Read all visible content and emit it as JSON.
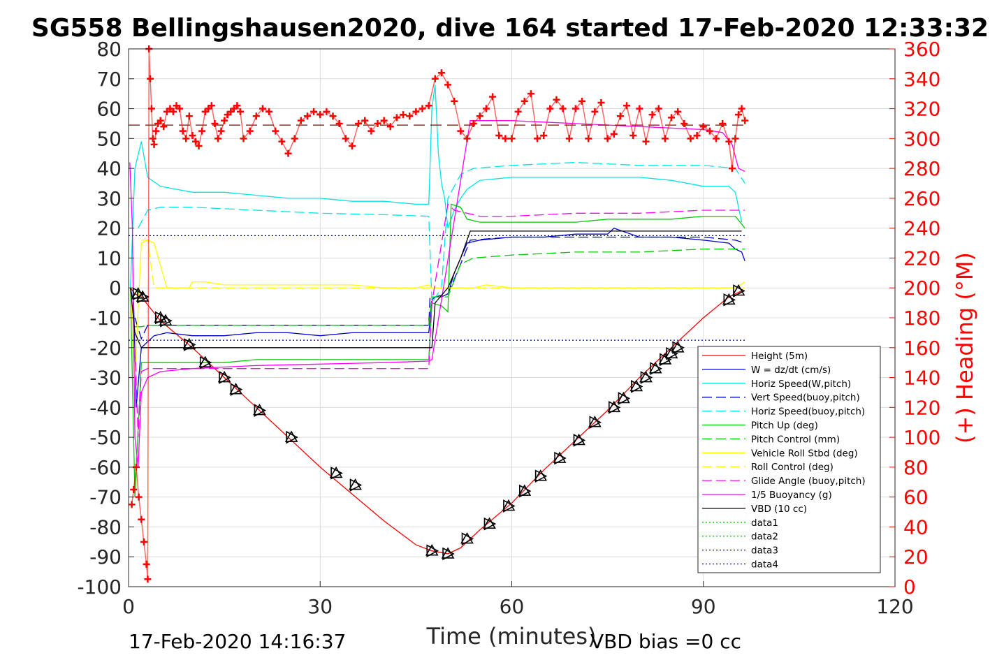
{
  "chart_data": {
    "type": "line",
    "title": "SG558 Bellingshausen2020, dive 164 started 17-Feb-2020 12:33:32",
    "xlabel": "Time (minutes)",
    "ylabel_left": "",
    "ylabel_right": "(+) Heading (°M)",
    "xlim": [
      0,
      120
    ],
    "ylim_left": [
      -100,
      80
    ],
    "ylim_right": [
      0,
      360
    ],
    "x_ticks": [
      "0",
      "30",
      "60",
      "90",
      "120"
    ],
    "y_ticks_left": [
      "80",
      "70",
      "60",
      "50",
      "40",
      "30",
      "20",
      "10",
      "0",
      "-10",
      "-20",
      "-30",
      "-40",
      "-50",
      "-60",
      "-70",
      "-80",
      "-90",
      "-100"
    ],
    "y_ticks_right": [
      "360",
      "340",
      "320",
      "300",
      "280",
      "260",
      "240",
      "220",
      "200",
      "180",
      "160",
      "140",
      "120",
      "100",
      "80",
      "60",
      "40",
      "20",
      "0"
    ],
    "grid": true,
    "legend_position": "bottom-right",
    "footer_left": "17-Feb-2020 14:16:37",
    "footer_right": "VBD bias =0 cc",
    "colors": {
      "height": "#ff0000",
      "w": "#0000cc",
      "horiz_w": "#00e5e5",
      "vert_buoy": "#0000cc",
      "horiz_buoy": "#00e5e5",
      "pitch": "#00cc00",
      "pitch_ctrl": "#00cc00",
      "roll": "#ffff00",
      "roll_ctrl": "#ffff00",
      "glide": "#ff00ff",
      "buoyancy": "#ff00ff",
      "vbd": "#000000",
      "data3": "#0000aa",
      "data4": "#0000aa",
      "heading": "#ff0000",
      "heading_ref": "#8b0000"
    },
    "series": [
      {
        "key": "height",
        "name": "Height (5m)",
        "axis": "left",
        "style": "solid",
        "color": "#ff0000",
        "x": [
          0.3,
          1,
          2,
          5,
          10,
          15,
          20,
          25,
          30,
          35,
          40,
          45,
          47.5,
          50,
          52,
          55,
          60,
          65,
          70,
          75,
          80,
          85,
          90,
          94,
          96
        ],
        "y": [
          0,
          -2,
          -3,
          -11,
          -20,
          -30,
          -40,
          -50,
          -60,
          -69,
          -78,
          -86,
          -88,
          -89,
          -87,
          -81,
          -72,
          -61,
          -51,
          -41,
          -30,
          -20,
          -10,
          -3,
          -1
        ]
      },
      {
        "key": "w",
        "name": "W = dz/dt (cm/s)",
        "axis": "left",
        "style": "solid",
        "color": "#0000cc",
        "x": [
          0.3,
          0.8,
          1.2,
          2,
          4,
          6,
          10,
          15,
          20,
          25,
          30,
          35,
          40,
          45,
          47,
          47.5,
          48,
          49,
          50,
          51,
          52,
          53,
          55,
          60,
          65,
          70,
          75,
          76,
          80,
          85,
          90,
          94,
          95,
          96,
          96.5
        ],
        "y": [
          0,
          -5,
          -40,
          -20,
          -16,
          -15,
          -16,
          -16,
          -15,
          -15,
          -16,
          -15,
          -15,
          -15,
          -15,
          -4,
          -3,
          -3,
          -2,
          5,
          10,
          15,
          16,
          17,
          17,
          18,
          18,
          20,
          17,
          17,
          16,
          15,
          13,
          12,
          9
        ]
      },
      {
        "key": "horiz_w",
        "name": "Horiz Speed(W,pitch)",
        "axis": "left",
        "style": "solid",
        "color": "#00e5e5",
        "x": [
          0.3,
          1,
          2,
          3,
          5,
          10,
          15,
          20,
          25,
          30,
          35,
          40,
          45,
          47,
          47.5,
          48,
          48.5,
          49,
          49.5,
          50,
          51,
          52,
          53,
          55,
          60,
          65,
          70,
          75,
          80,
          85,
          90,
          94,
          95,
          96
        ],
        "y": [
          0,
          40,
          49,
          37,
          34,
          32,
          32,
          31,
          30,
          30,
          29,
          29,
          28,
          28,
          60,
          68,
          45,
          35,
          30,
          20,
          26,
          30,
          33,
          36,
          37,
          37,
          37,
          37,
          37,
          36,
          34,
          34,
          32,
          22
        ]
      },
      {
        "key": "vert_buoy",
        "name": "Vert Speed(buoy,pitch)",
        "axis": "left",
        "style": "dash",
        "color": "#0000cc",
        "x": [
          1,
          2,
          3,
          10,
          20,
          30,
          40,
          47,
          47.2,
          48,
          50,
          52,
          53.5,
          60,
          70,
          80,
          90,
          95,
          96.5
        ],
        "y": [
          -10,
          -17,
          -12.5,
          -12.5,
          -12.5,
          -12.5,
          -12.5,
          -12.5,
          -3,
          -3,
          -2,
          8,
          16,
          17,
          17,
          17,
          17,
          16,
          15
        ]
      },
      {
        "key": "horiz_buoy",
        "name": "Horiz Speed(buoy,pitch)",
        "axis": "left",
        "style": "dash",
        "color": "#00e5e5",
        "x": [
          1.5,
          3,
          5,
          10,
          20,
          30,
          40,
          47,
          47.5,
          49,
          50,
          52,
          54,
          60,
          70,
          80,
          90,
          95,
          96.5
        ],
        "y": [
          20,
          26,
          27,
          27,
          26,
          25,
          24.5,
          24,
          -5,
          0,
          30,
          38,
          40,
          41,
          42,
          41,
          41,
          40,
          35
        ]
      },
      {
        "key": "pitch",
        "name": "Pitch Up (deg)",
        "axis": "left",
        "style": "solid",
        "color": "#00cc00",
        "x": [
          0.3,
          1,
          2,
          3,
          5,
          10,
          15,
          20,
          30,
          40,
          45,
          47,
          47.5,
          49,
          50,
          50.5,
          52,
          53,
          55,
          60,
          65,
          70,
          75,
          80,
          85,
          90,
          95,
          96.5
        ],
        "y": [
          0,
          -70,
          -25,
          -25,
          -25,
          -25,
          -25,
          -24,
          -24,
          -24,
          -24,
          -24,
          -5,
          -6,
          -8,
          28,
          27,
          23,
          22,
          22,
          22,
          22,
          23,
          23,
          23,
          24,
          24,
          20
        ]
      },
      {
        "key": "pitch_ctrl",
        "name": "Pitch Control (mm)",
        "axis": "left",
        "style": "dash",
        "color": "#00cc00",
        "x": [
          1,
          2,
          3,
          10,
          20,
          30,
          40,
          47,
          47.5,
          50,
          52,
          54,
          60,
          70,
          80,
          90,
          96.5
        ],
        "y": [
          -13,
          -13,
          -12.5,
          -12.5,
          -12.5,
          -12.5,
          -12.5,
          -12.5,
          -3,
          -3,
          8,
          10,
          11,
          12,
          12,
          13,
          13
        ]
      },
      {
        "key": "roll",
        "name": "Vehicle Roll Stbd (deg)",
        "axis": "left",
        "style": "solid",
        "color": "#ffff00",
        "x": [
          0.3,
          1,
          2,
          3,
          4,
          6,
          9.5,
          10,
          12,
          15,
          18,
          20,
          25,
          30,
          34,
          35,
          40,
          45,
          47,
          47.5,
          50,
          52,
          54,
          56,
          60,
          65,
          70,
          75,
          80,
          85,
          90,
          95,
          96.5
        ],
        "y": [
          0,
          -30,
          15,
          16,
          15,
          0,
          0,
          2,
          2,
          1,
          1,
          1,
          1,
          1,
          1,
          1,
          0,
          0,
          1,
          0,
          0,
          0,
          0,
          1,
          0,
          0,
          0,
          0,
          0,
          0,
          0,
          0,
          2
        ]
      },
      {
        "key": "roll_ctrl",
        "name": "Roll Control (deg)",
        "axis": "left",
        "style": "dash",
        "color": "#ffff00",
        "x": [
          2,
          3,
          4,
          10,
          20,
          30,
          40,
          47,
          48,
          50,
          54,
          60,
          70,
          80,
          90,
          96.5
        ],
        "y": [
          16,
          16,
          0,
          0,
          0,
          0,
          0,
          0,
          0,
          0,
          0,
          0,
          0,
          0,
          0,
          0
        ]
      },
      {
        "key": "glide",
        "name": "Glide Angle (buoy,pitch)",
        "axis": "left",
        "style": "dash",
        "color": "#ff00ff",
        "x": [
          1,
          1.5,
          2,
          3,
          5,
          10,
          20,
          30,
          40,
          47,
          47.5,
          50,
          51,
          53,
          55,
          60,
          70,
          80,
          90,
          95,
          96.5
        ],
        "y": [
          -20,
          -50,
          -28,
          -27,
          -27,
          -27,
          -27,
          -27,
          -27,
          -27,
          -5,
          28,
          26,
          25,
          24,
          24,
          25,
          25,
          26,
          26,
          26
        ]
      },
      {
        "key": "buoyancy",
        "name": "1/5 Buoyancy (g)",
        "axis": "left",
        "style": "solid",
        "color": "#ff00ff",
        "x": [
          0.2,
          0.6,
          1,
          1.5,
          2,
          3,
          5,
          10,
          20,
          30,
          40,
          47,
          47.5,
          53.5,
          55,
          60,
          70,
          80,
          90,
          93,
          94.5,
          95.5,
          96.5
        ],
        "y": [
          42,
          20,
          -50,
          -60,
          -35,
          -30,
          -28,
          -27,
          -26,
          -25.5,
          -25,
          -24.5,
          -24,
          56,
          56,
          56,
          55,
          54,
          53,
          52,
          48,
          40,
          39
        ]
      },
      {
        "key": "vbd",
        "name": "VBD (10 cc)",
        "axis": "left",
        "style": "solid",
        "color": "#000000",
        "x": [
          0.3,
          1,
          2,
          4,
          10,
          20,
          30,
          40,
          47,
          47.5,
          48,
          50,
          52,
          53.5,
          55,
          60,
          70,
          80,
          90,
          96
        ],
        "y": [
          0,
          -15,
          -20,
          -20,
          -20,
          -20,
          -20,
          -20,
          -20,
          -20,
          -5,
          0,
          10,
          19,
          19,
          19,
          19,
          19,
          19,
          19
        ]
      },
      {
        "key": "data1",
        "name": "data1",
        "axis": "left",
        "style": "dot",
        "color": "#00cc00",
        "x": [],
        "y": []
      },
      {
        "key": "data2",
        "name": "data2",
        "axis": "left",
        "style": "dot",
        "color": "#00cc00",
        "x": [],
        "y": []
      },
      {
        "key": "data3",
        "name": "data3",
        "axis": "left",
        "style": "dot",
        "color": "#0000aa",
        "x": [
          0,
          96.5
        ],
        "y": [
          17.5,
          17.5
        ]
      },
      {
        "key": "data4",
        "name": "data4",
        "axis": "left",
        "style": "dot",
        "color": "#0000aa",
        "x": [
          0,
          96.5
        ],
        "y": [
          -17.5,
          -17.5
        ]
      }
    ],
    "heading_ref": {
      "axis": "right",
      "style": "longdash",
      "color": "#8b0000",
      "x": [
        0,
        96.5
      ],
      "y": [
        309,
        309
      ]
    },
    "heading": {
      "axis": "right",
      "color": "#ff0000",
      "marker": "+",
      "x": [
        0.5,
        0.8,
        1.2,
        1.6,
        2.0,
        2.4,
        2.8,
        3.0,
        3.2,
        3.4,
        3.6,
        3.8,
        4.0,
        4.3,
        4.6,
        5.0,
        5.5,
        6.0,
        6.5,
        7.0,
        7.5,
        8.0,
        8.5,
        9.0,
        9.5,
        10.0,
        10.5,
        11.0,
        11.5,
        12.0,
        12.5,
        13.0,
        13.5,
        14.0,
        14.5,
        15.0,
        15.5,
        16.0,
        16.5,
        17.0,
        17.5,
        18.0,
        19.0,
        20.0,
        21.0,
        22.0,
        23.0,
        24.0,
        25.0,
        26.0,
        27.0,
        28.0,
        29.0,
        30.0,
        31.0,
        32.0,
        33.0,
        34.0,
        35.0,
        36.0,
        37.0,
        38.0,
        39.0,
        40.0,
        41.0,
        42.0,
        43.0,
        44.0,
        45.0,
        46.0,
        47.0,
        48.0,
        49.0,
        50.0,
        51.0,
        52.0,
        53.0,
        54.0,
        55.0,
        56.0,
        57.0,
        58.0,
        59.0,
        60.0,
        61.0,
        62.0,
        63.0,
        64.0,
        65.0,
        66.0,
        67.0,
        68.0,
        69.0,
        70.0,
        71.0,
        72.0,
        73.0,
        74.0,
        75.0,
        76.0,
        77.0,
        78.0,
        79.0,
        80.0,
        81.0,
        82.0,
        83.0,
        84.0,
        85.0,
        86.0,
        87.0,
        88.0,
        89.0,
        90.0,
        91.0,
        92.0,
        93.0,
        94.0,
        94.5,
        95.0,
        95.5,
        96.0,
        96.5
      ],
      "y": [
        55,
        65,
        80,
        60,
        45,
        30,
        15,
        5,
        360,
        340,
        320,
        300,
        296,
        305,
        310,
        312,
        308,
        318,
        320,
        318,
        322,
        320,
        305,
        300,
        315,
        302,
        298,
        295,
        305,
        318,
        320,
        322,
        310,
        300,
        305,
        312,
        316,
        318,
        320,
        322,
        318,
        300,
        305,
        315,
        320,
        318,
        305,
        298,
        290,
        300,
        312,
        315,
        318,
        316,
        318,
        315,
        310,
        300,
        295,
        310,
        312,
        305,
        310,
        312,
        308,
        314,
        316,
        315,
        318,
        320,
        322,
        340,
        344,
        336,
        325,
        305,
        300,
        310,
        315,
        320,
        328,
        302,
        300,
        300,
        318,
        325,
        330,
        300,
        302,
        320,
        326,
        320,
        300,
        320,
        325,
        300,
        318,
        324,
        300,
        303,
        315,
        322,
        302,
        320,
        298,
        316,
        320,
        300,
        314,
        318,
        310,
        300,
        302,
        308,
        305,
        300,
        310,
        298,
        280,
        300,
        316,
        320,
        312
      ]
    },
    "markers": {
      "color": "#000000",
      "x": [
        1.5,
        2.2,
        5,
        5.8,
        9.5,
        12,
        15,
        16.8,
        20.5,
        25.5,
        32.5,
        35.5,
        47.5,
        50,
        53,
        56.5,
        59.5,
        62,
        64.5,
        67.5,
        70.5,
        73,
        76,
        77.5,
        79.5,
        81,
        82.5,
        84,
        85,
        86,
        94,
        95.5
      ],
      "y": [
        -2,
        -3,
        -10,
        -11,
        -19,
        -25,
        -30,
        -34,
        -41,
        -50,
        -62,
        -66,
        -88,
        -89,
        -84,
        -79,
        -73,
        -68,
        -63,
        -57,
        -51,
        -45,
        -40,
        -37,
        -33,
        -30,
        -27,
        -24,
        -22,
        -20,
        -4,
        -1
      ]
    }
  }
}
